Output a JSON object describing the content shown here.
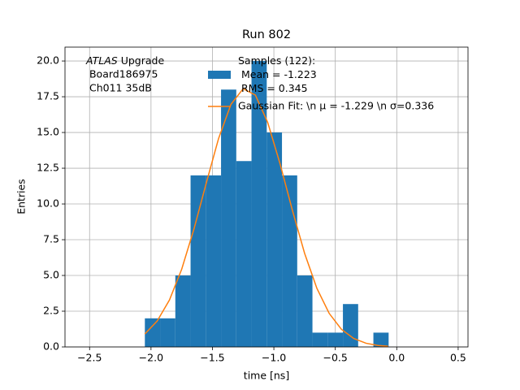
{
  "chart_data": {
    "type": "histogram",
    "title": "Run 802",
    "xlabel": "time [ns]",
    "ylabel": "Entries",
    "annotation_lines": [
      [
        "ATLAS",
        " Upgrade"
      ],
      " Board186975",
      " Ch011 35dB"
    ],
    "bins": [
      -2.05,
      -1.926,
      -1.802,
      -1.678,
      -1.554,
      -1.43,
      -1.306,
      -1.182,
      -1.058,
      -0.934,
      -0.81,
      -0.686,
      -0.562,
      -0.438,
      -0.314,
      -0.19,
      -0.066
    ],
    "series": [
      {
        "name": "Samples (122):\n Mean = -1.223\n RMS = 0.345",
        "type": "histogram",
        "color": "#1f77b4",
        "values": [
          2,
          2,
          5,
          12,
          12,
          18,
          13,
          20,
          15,
          12,
          5,
          1,
          1,
          3,
          0,
          1
        ]
      },
      {
        "name": "Gaussian Fit: \\n μ = -1.229 \\n σ=0.336",
        "type": "line",
        "color": "#ff7f0e",
        "x": [
          -2.05,
          -1.95,
          -1.85,
          -1.75,
          -1.65,
          -1.55,
          -1.45,
          -1.35,
          -1.25,
          -1.15,
          -1.05,
          -0.95,
          -0.85,
          -0.75,
          -0.65,
          -0.55,
          -0.45,
          -0.35,
          -0.25,
          -0.15,
          -0.07
        ],
        "values": [
          0.91,
          1.81,
          3.28,
          5.44,
          8.26,
          11.47,
          14.58,
          16.96,
          18.06,
          17.61,
          15.7,
          12.82,
          9.58,
          6.55,
          4.1,
          2.35,
          1.23,
          0.59,
          0.26,
          0.1,
          0.05
        ]
      }
    ],
    "xlim": [
      -2.7,
      0.58
    ],
    "ylim": [
      0,
      20.97
    ],
    "xticks": [
      {
        "value": -2.5,
        "label": "−2.5"
      },
      {
        "value": -2.0,
        "label": "−2.0"
      },
      {
        "value": -1.5,
        "label": "−1.5"
      },
      {
        "value": -1.0,
        "label": "−1.0"
      },
      {
        "value": -0.5,
        "label": "−0.5"
      },
      {
        "value": 0.0,
        "label": "0.0"
      },
      0.5
    ],
    "yticks": [
      {
        "value": 0,
        "label": "0.0"
      },
      2.5,
      {
        "value": 5,
        "label": "5.0"
      },
      7.5,
      {
        "value": 10,
        "label": "10.0"
      },
      12.5,
      {
        "value": 15,
        "label": "15.0"
      },
      17.5,
      {
        "value": 20,
        "label": "20.0"
      }
    ],
    "grid": true,
    "legend": "upper center"
  }
}
